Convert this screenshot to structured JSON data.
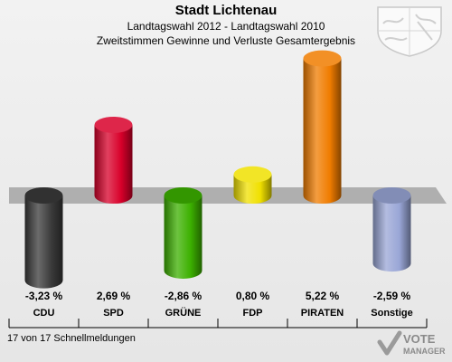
{
  "header": {
    "title": "Stadt Lichtenau",
    "subtitle": "Landtagswahl 2012 - Landtagswahl 2010",
    "subtitle2": "Zweitstimmen Gewinne und Verluste Gesamtergebnis"
  },
  "footer": {
    "text": "17 von 17 Schnellmeldungen"
  },
  "brand": {
    "line1": "VOTE",
    "line2": "MANAGER"
  },
  "colors": {
    "CDU": "#3a3a3a",
    "SPD": "#d8002a",
    "GRÜNE": "#3cb000",
    "FDP": "#f0e000",
    "PIRATEN": "#f07c00",
    "Sonstige": "#99a6d6"
  },
  "chart_data": {
    "type": "bar",
    "categories": [
      "CDU",
      "SPD",
      "GRÜNE",
      "FDP",
      "PIRATEN",
      "Sonstige"
    ],
    "values": [
      -3.23,
      2.69,
      -2.86,
      0.8,
      5.22,
      -2.59
    ],
    "labels": [
      "-3,23 %",
      "2,69 %",
      "-2,86 %",
      "0,80 %",
      "5,22 %",
      "-2,59 %"
    ],
    "unit": "%",
    "ylim": [
      -3.5,
      5.5
    ],
    "grid": false,
    "legend": "none"
  }
}
